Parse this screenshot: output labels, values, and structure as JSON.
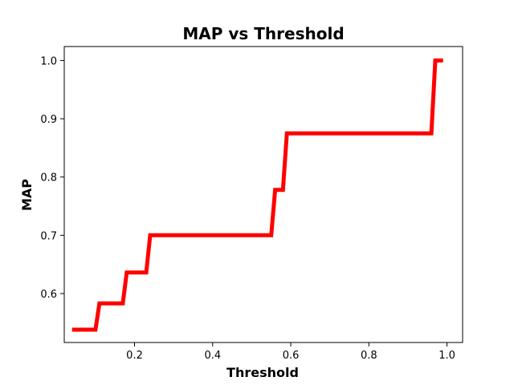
{
  "chart_data": {
    "type": "line",
    "title": "MAP vs Threshold",
    "xlabel": "Threshold",
    "ylabel": "MAP",
    "xlim": [
      0.02,
      1.04
    ],
    "ylim": [
      0.516,
      1.024
    ],
    "xticks": [
      0.2,
      0.4,
      0.6,
      0.8,
      1.0
    ],
    "yticks": [
      0.6,
      0.7,
      0.8,
      0.9,
      1.0
    ],
    "xtick_labels": [
      "0.2",
      "0.4",
      "0.6",
      "0.8",
      "1.0"
    ],
    "ytick_labels": [
      "0.6",
      "0.7",
      "0.8",
      "0.9",
      "1.0"
    ],
    "grid": false,
    "series": [
      {
        "color": "#ff0000",
        "x": [
          0.04,
          0.1,
          0.11,
          0.17,
          0.18,
          0.23,
          0.24,
          0.55,
          0.56,
          0.58,
          0.59,
          0.96,
          0.97,
          0.99
        ],
        "y": [
          0.538,
          0.538,
          0.583,
          0.583,
          0.636,
          0.636,
          0.7,
          0.7,
          0.778,
          0.778,
          0.875,
          0.875,
          1.0,
          1.0
        ]
      }
    ]
  }
}
